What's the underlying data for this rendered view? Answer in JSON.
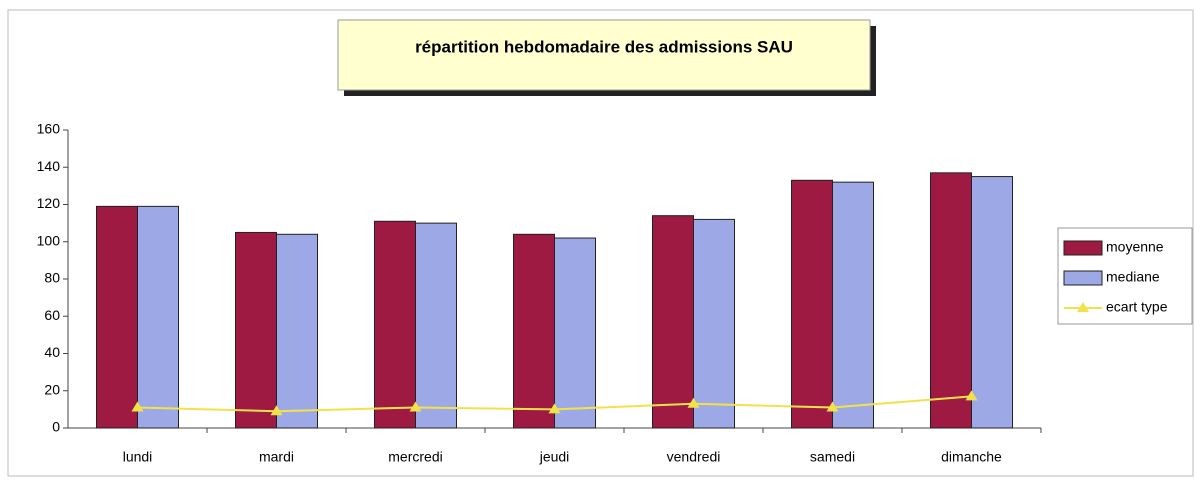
{
  "chart_data": {
    "type": "bar",
    "title": "répartition hebdomadaire des admissions  SAU",
    "categories": [
      "lundi",
      "mardi",
      "mercredi",
      "jeudi",
      "vendredi",
      "samedi",
      "dimanche"
    ],
    "series": [
      {
        "name": "moyenne",
        "color": "#9e1a42",
        "type": "bar",
        "values": [
          119,
          105,
          111,
          104,
          114,
          133,
          137
        ]
      },
      {
        "name": "mediane",
        "color": "#9da8e6",
        "type": "bar",
        "values": [
          119,
          104,
          110,
          102,
          112,
          132,
          135
        ]
      },
      {
        "name": "ecart type",
        "color": "#f2e24a",
        "type": "line",
        "values": [
          11,
          9,
          11,
          10,
          13,
          11,
          17
        ]
      }
    ],
    "ylim": [
      0,
      160
    ],
    "yticks": [
      0,
      20,
      40,
      60,
      80,
      100,
      120,
      140,
      160
    ],
    "legend": "right"
  }
}
